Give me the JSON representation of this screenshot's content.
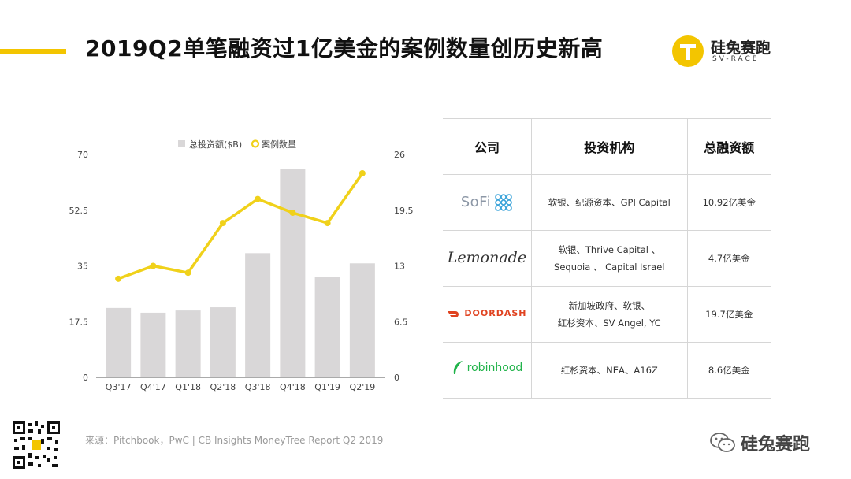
{
  "header": {
    "title": "2019Q2单笔融资过1亿美金的案例数量创历史新高",
    "brand_name": "硅兔赛跑",
    "brand_sub": "SV-RACE"
  },
  "chart_data": {
    "type": "bar",
    "title": "",
    "categories": [
      "Q3'17",
      "Q4'17",
      "Q1'18",
      "Q2'18",
      "Q3'18",
      "Q4'18",
      "Q1'19",
      "Q2'19"
    ],
    "series": [
      {
        "name": "总投资额($B)",
        "chart": "bar",
        "axis": "left",
        "color": "#d9d7d8",
        "values": [
          21.8,
          20.3,
          21.0,
          22.0,
          39.0,
          65.5,
          31.5,
          35.8
        ]
      },
      {
        "name": "案例数量",
        "chart": "line",
        "axis": "right",
        "color": "#f0d11a",
        "values": [
          11.5,
          13.0,
          12.2,
          18.0,
          20.8,
          19.2,
          18.0,
          23.8
        ]
      }
    ],
    "left_axis": {
      "ticks": [
        "70",
        "52.5",
        "35",
        "17.5",
        "0"
      ],
      "ylim": [
        0,
        70
      ]
    },
    "right_axis": {
      "ticks": [
        "26",
        "19.5",
        "13",
        "6.5",
        "0"
      ],
      "ylim": [
        0,
        26
      ]
    },
    "legend_position": "top-center",
    "grid": false
  },
  "table": {
    "headers": [
      "公司",
      "投资机构",
      "总融资额"
    ],
    "rows": [
      {
        "company": "SoFi",
        "investors": [
          "软银、纪源资本、GPI Capital"
        ],
        "amount": "10.92亿美金"
      },
      {
        "company": "Lemonade",
        "investors": [
          "软银、Thrive Capital 、",
          "Sequoia 、 Capital Israel"
        ],
        "amount": "4.7亿美金"
      },
      {
        "company": "DOORDASH",
        "investors": [
          "新加坡政府、软银、",
          "红杉资本、SV Angel, YC"
        ],
        "amount": "19.7亿美金"
      },
      {
        "company": "robinhood",
        "investors": [
          "红杉资本、NEA、A16Z"
        ],
        "amount": "8.6亿美金"
      }
    ]
  },
  "footer": {
    "source": "来源：Pitchbook，PwC | CB Insights MoneyTree Report Q2 2019",
    "wechat_name": "硅兔赛跑"
  },
  "colors": {
    "accent": "#f3c500",
    "bar": "#d9d7d8",
    "line": "#f0d11a"
  }
}
